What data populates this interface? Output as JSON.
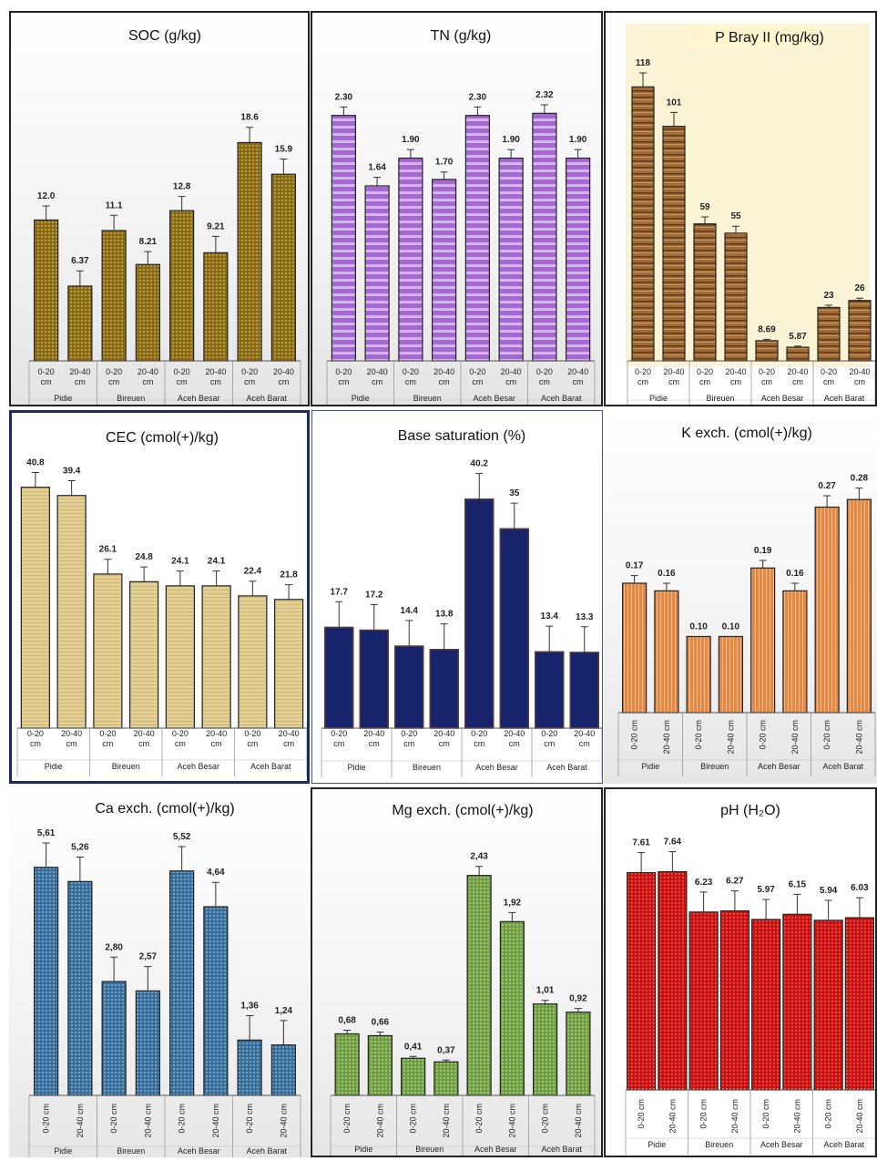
{
  "colors": {
    "soc": "#8a6a12",
    "tn": "#a46ad1",
    "p": "#8b5a2b",
    "cec": "#e3cf94",
    "bs": "#17246b",
    "k": "#e08a48",
    "ca": "#356e9c",
    "mg": "#6f9e3e",
    "ph": "#cc1111"
  },
  "chart_data": [
    {
      "id": "soc",
      "type": "bar",
      "title": "SOC (g/kg)",
      "categories": [
        "0-20 cm",
        "20-40 cm",
        "0-20 cm",
        "20-40 cm",
        "0-20 cm",
        "20-40 cm",
        "0-20 cm",
        "20-40 cm"
      ],
      "groups": [
        "Pidie",
        "Bireuen",
        "Aceh Besar",
        "Aceh Barat"
      ],
      "values": [
        12.0,
        6.37,
        11.1,
        8.21,
        12.8,
        9.21,
        18.6,
        15.9
      ],
      "labels": [
        "12.0",
        "6.37",
        "11.1",
        "8.21",
        "12.8",
        "9.21",
        "18.6",
        "15.9"
      ],
      "errors": [
        1.2,
        1.3,
        1.3,
        1.1,
        1.2,
        1.4,
        1.3,
        1.3
      ],
      "ylim": [
        0,
        25
      ]
    },
    {
      "id": "tn",
      "type": "bar",
      "title": "TN (g/kg)",
      "categories": [
        "0-20 cm",
        "20-40 cm",
        "0-20 cm",
        "20-40 cm",
        "0-20 cm",
        "20-40 cm",
        "0-20 cm",
        "20-40 cm"
      ],
      "groups": [
        "Pidie",
        "Bireuen",
        "Aceh Besar",
        "Aceh Barat"
      ],
      "values": [
        2.3,
        1.64,
        1.9,
        1.7,
        2.3,
        1.9,
        2.32,
        1.9
      ],
      "labels": [
        "2.30",
        "1.64",
        "1.90",
        "1.70",
        "2.30",
        "1.90",
        "2.32",
        "1.90"
      ],
      "errors": [
        0.08,
        0.08,
        0.08,
        0.07,
        0.08,
        0.08,
        0.08,
        0.08
      ],
      "ylim": [
        0,
        2.75
      ]
    },
    {
      "id": "p",
      "type": "bar",
      "title": "P Bray II (mg/kg)",
      "categories": [
        "0-20 cm",
        "20-40 cm",
        "0-20 cm",
        "20-40 cm",
        "0-20 cm",
        "20-40 cm",
        "0-20 cm",
        "20-40 cm"
      ],
      "groups": [
        "Pidie",
        "Bireuen",
        "Aceh Besar",
        "Aceh Barat"
      ],
      "values": [
        118,
        101,
        59,
        55,
        8.69,
        5.87,
        23,
        26
      ],
      "labels": [
        "118",
        "101",
        "59",
        "55",
        "8.69",
        "5.87",
        "23",
        "26"
      ],
      "errors": [
        6,
        6,
        3,
        3,
        0.6,
        0.5,
        1,
        1
      ],
      "ylim": [
        0,
        135
      ]
    },
    {
      "id": "cec",
      "type": "bar",
      "title": "CEC (cmol(+)/kg)",
      "categories": [
        "0-20 cm",
        "20-40 cm",
        "0-20 cm",
        "20-40 cm",
        "0-20 cm",
        "20-40 cm",
        "0-20 cm",
        "20-40 cm"
      ],
      "groups": [
        "Pidie",
        "Bireuen",
        "Aceh Besar",
        "Aceh Barat"
      ],
      "values": [
        40.8,
        39.4,
        26.1,
        24.8,
        24.1,
        24.1,
        22.4,
        21.8
      ],
      "labels": [
        "40.8",
        "39.4",
        "26.1",
        "24.8",
        "24.1",
        "24.1",
        "22.4",
        "21.8"
      ],
      "errors": [
        2.5,
        2.5,
        2.5,
        2.5,
        2.5,
        2.5,
        2.5,
        2.5
      ],
      "ylim": [
        0,
        46
      ]
    },
    {
      "id": "bs",
      "type": "bar",
      "title": "Base saturation (%)",
      "categories": [
        "0-20 cm",
        "20-40 cm",
        "0-20 cm",
        "20-40 cm",
        "0-20 cm",
        "20-40 cm",
        "0-20 cm",
        "20-40 cm"
      ],
      "groups": [
        "Pidie",
        "Bireuen",
        "Aceh Besar",
        "Aceh Barat"
      ],
      "values": [
        17.7,
        17.2,
        14.4,
        13.8,
        40.2,
        35,
        13.4,
        13.3
      ],
      "labels": [
        "17.7",
        "17.2",
        "14.4",
        "13.8",
        "40.2",
        "35",
        "13.4",
        "13.3"
      ],
      "errors": [
        4.5,
        4.5,
        4.5,
        4.5,
        4.5,
        4.5,
        4.5,
        4.5
      ],
      "ylim": [
        0,
        48
      ]
    },
    {
      "id": "k",
      "type": "bar",
      "title": "K exch. (cmol(+)/kg)",
      "categories": [
        "0-20 cm",
        "20-40 cm",
        "0-20 cm",
        "20-40 cm",
        "0-20 cm",
        "20-40 cm",
        "0-20 cm",
        "20-40 cm"
      ],
      "groups": [
        "Pidie",
        "Bireuen",
        "Aceh Besar",
        "Aceh Barat"
      ],
      "values": [
        0.17,
        0.16,
        0.1,
        0.1,
        0.19,
        0.16,
        0.27,
        0.28
      ],
      "labels": [
        "0.17",
        "0.16",
        "0.10",
        "0.10",
        "0.19",
        "0.16",
        "0.27",
        "0.28"
      ],
      "errors": [
        0.01,
        0.01,
        0.0,
        0.0,
        0.01,
        0.01,
        0.015,
        0.015
      ],
      "ylim": [
        0,
        0.34
      ]
    },
    {
      "id": "ca",
      "type": "bar",
      "title": "Ca exch. (cmol(+)/kg)",
      "categories": [
        "0-20 cm",
        "20-40 cm",
        "0-20 cm",
        "20-40 cm",
        "0-20 cm",
        "20-40 cm",
        "0-20 cm",
        "20-40 cm"
      ],
      "groups": [
        "Pidie",
        "Bireuen",
        "Aceh Besar",
        "Aceh Barat"
      ],
      "values": [
        5.61,
        5.26,
        2.8,
        2.57,
        5.52,
        4.64,
        1.36,
        1.24
      ],
      "labels": [
        "5,61",
        "5,26",
        "2,80",
        "2,57",
        "5,52",
        "4,64",
        "1,36",
        "1,24"
      ],
      "errors": [
        0.6,
        0.6,
        0.6,
        0.6,
        0.6,
        0.6,
        0.6,
        0.6
      ],
      "ylim": [
        0,
        6.5
      ]
    },
    {
      "id": "mg",
      "type": "bar",
      "title": "Mg exch. (cmol(+)/kg)",
      "categories": [
        "0-20 cm",
        "20-40 cm",
        "0-20 cm",
        "20-40 cm",
        "0-20 cm",
        "20-40 cm",
        "0-20 cm",
        "20-40 cm"
      ],
      "groups": [
        "Pidie",
        "Bireuen",
        "Aceh Besar",
        "Aceh Barat"
      ],
      "values": [
        0.68,
        0.66,
        0.41,
        0.37,
        2.43,
        1.92,
        1.01,
        0.92
      ],
      "labels": [
        "0,68",
        "0,66",
        "0,41",
        "0,37",
        "2,43",
        "1,92",
        "1,01",
        "0,92"
      ],
      "errors": [
        0.04,
        0.04,
        0.02,
        0.02,
        0.1,
        0.1,
        0.04,
        0.04
      ],
      "ylim": [
        0,
        2.9
      ]
    },
    {
      "id": "ph",
      "type": "bar",
      "title": "pH (H₂O)",
      "categories": [
        "0-20 cm",
        "20-40 cm",
        "0-20 cm",
        "20-40 cm",
        "0-20 cm",
        "20-40 cm",
        "0-20 cm",
        "20-40 cm"
      ],
      "groups": [
        "Pidie",
        "Bireuen",
        "Aceh Besar",
        "Aceh Barat"
      ],
      "values": [
        7.61,
        7.64,
        6.23,
        6.27,
        5.97,
        6.15,
        5.94,
        6.03
      ],
      "labels": [
        "7.61",
        "7.64",
        "6.23",
        "6.27",
        "5.97",
        "6.15",
        "5.94",
        "6.03"
      ],
      "errors": [
        0.7,
        0.7,
        0.7,
        0.7,
        0.7,
        0.7,
        0.7,
        0.7
      ],
      "ylim": [
        0,
        9.0
      ]
    }
  ]
}
